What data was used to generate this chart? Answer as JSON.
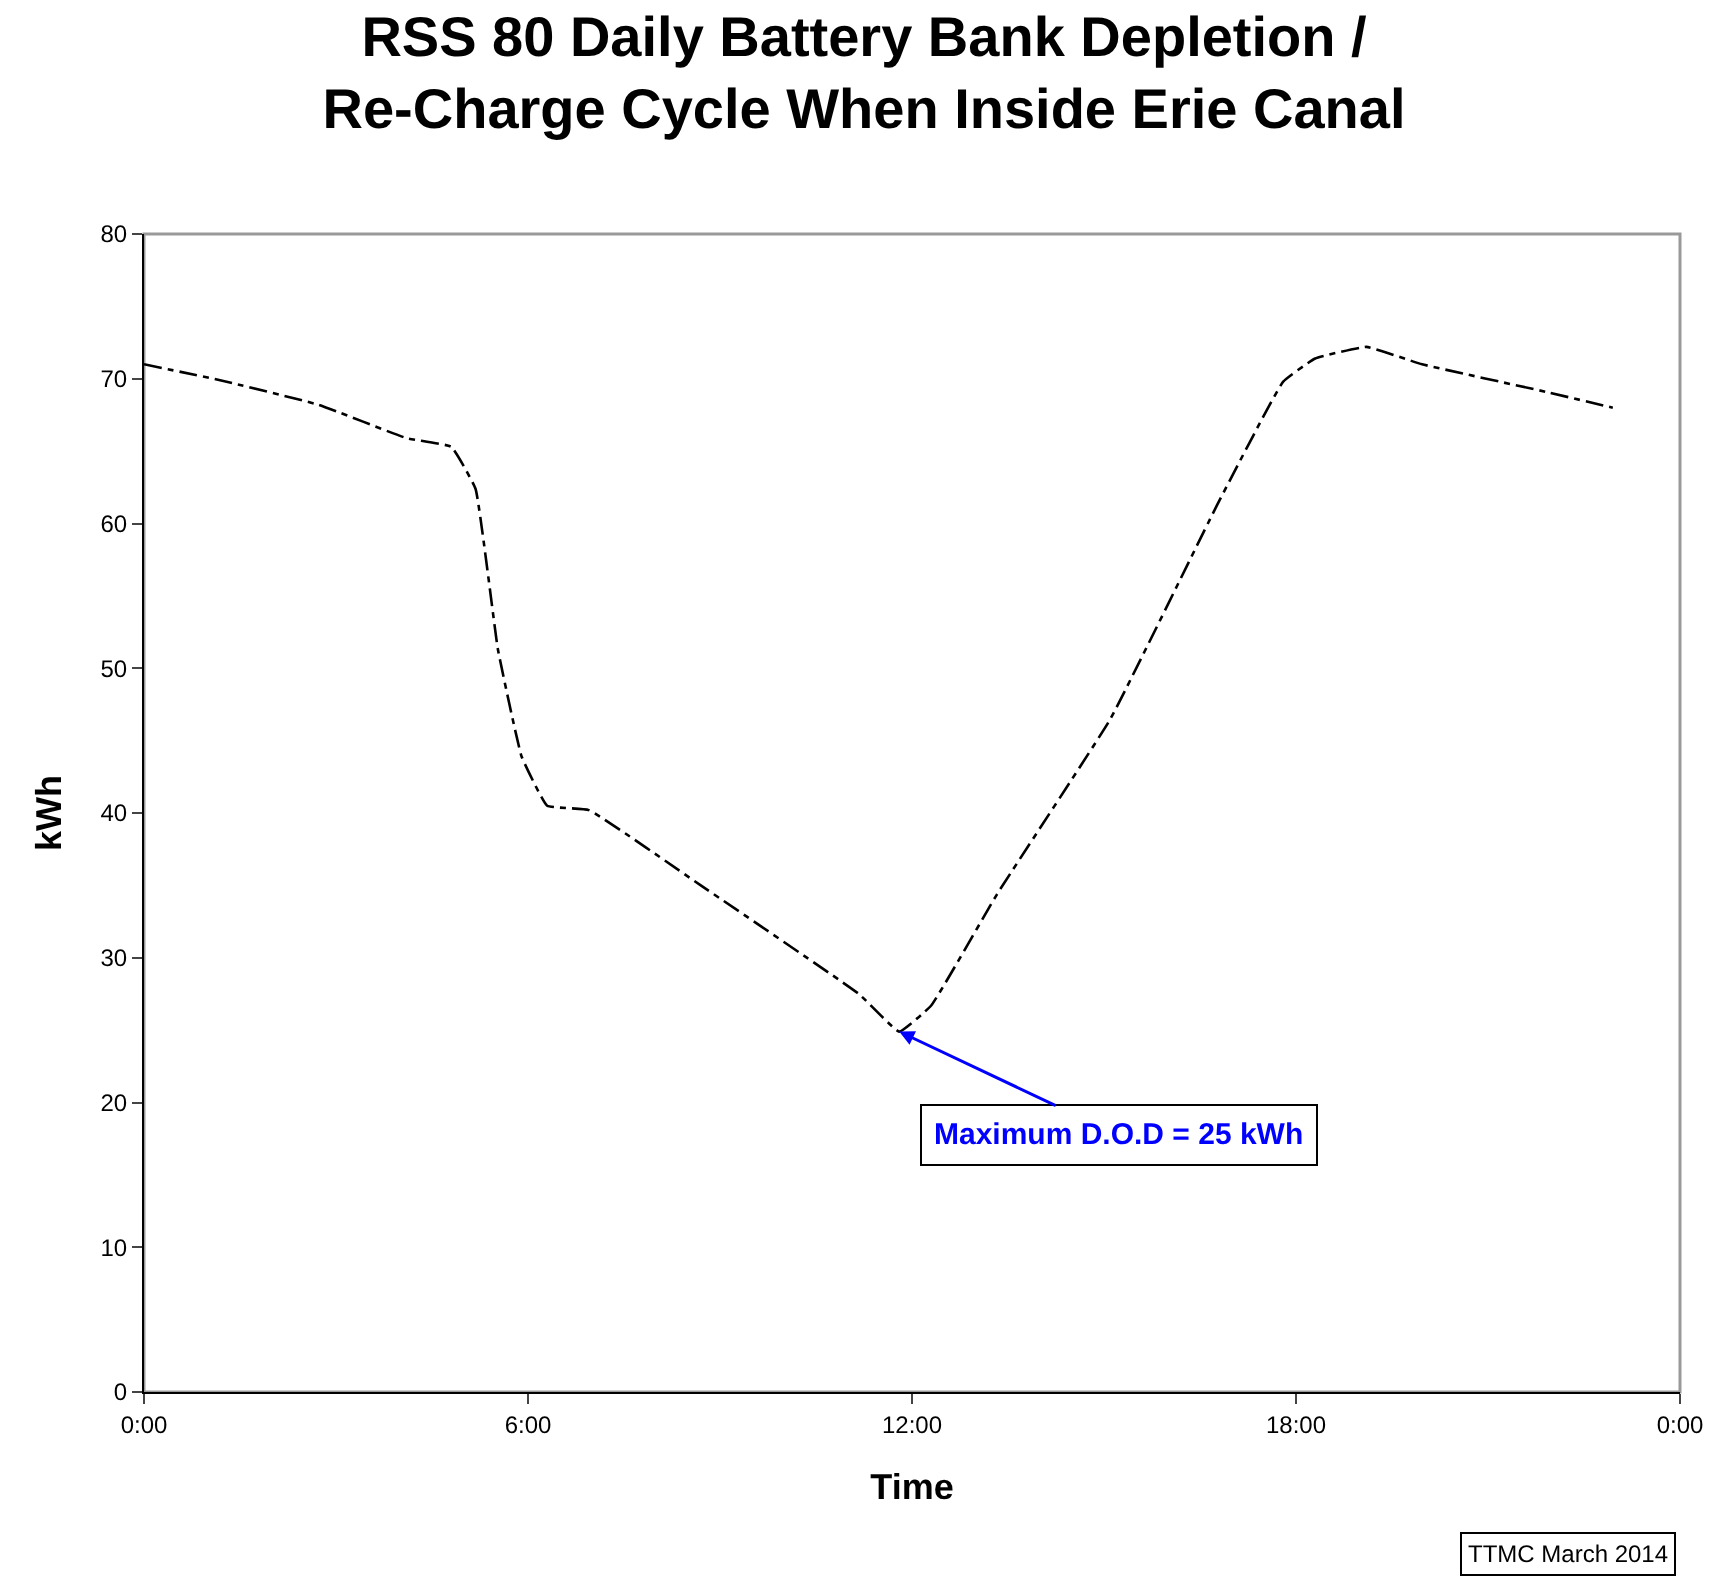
{
  "chart_data": {
    "type": "line",
    "title": "RSS 80 Daily Battery Bank Depletion /\nRe-Charge Cycle When Inside Erie Canal",
    "xlabel": "Time",
    "ylabel": "kWh",
    "series": [
      {
        "color": "#000000",
        "x": [
          0,
          1.19,
          2.73,
          4.1,
          4.8,
          5.18,
          5.53,
          5.9,
          6.3,
          6.95,
          8.7,
          11.17,
          11.8,
          12.3,
          13.33,
          15.1,
          16.77,
          17.8,
          18.3,
          19.1,
          19.97,
          21.9,
          22.95
        ],
        "values": [
          71.0,
          69.9,
          68.2,
          65.9,
          65.3,
          62.4,
          51.3,
          43.9,
          40.5,
          40.2,
          35.0,
          27.5,
          24.9,
          26.7,
          34.4,
          46.5,
          61.3,
          69.8,
          71.4,
          72.2,
          71.0,
          69.1,
          68.0
        ]
      }
    ],
    "xlim": [
      0,
      24
    ],
    "xticks": [
      {
        "value": 0,
        "label": "0:00"
      },
      {
        "value": 6,
        "label": "6:00"
      },
      {
        "value": 12,
        "label": "12:00"
      },
      {
        "value": 18,
        "label": "18:00"
      },
      {
        "value": 24,
        "label": "0:00"
      }
    ],
    "ylim": [
      0,
      80
    ],
    "yticks": [
      0,
      10,
      20,
      30,
      40,
      50,
      60,
      70,
      80
    ],
    "annotations": [
      {
        "text": "Maximum D.O.D = 25 kWh",
        "x": 11.8,
        "y": 24.9
      },
      "TTMC March 2014"
    ],
    "line_style": "dashdot",
    "marker": "none",
    "grid": false,
    "legend": false
  }
}
